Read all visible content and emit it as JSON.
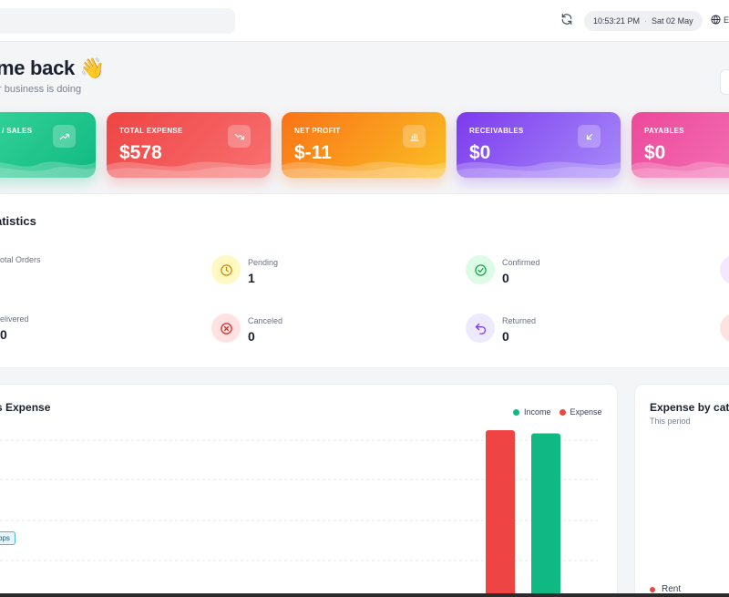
{
  "topbar": {
    "time": "10:53:21 PM",
    "separator": "·",
    "date": "Sat 02 May",
    "language": "E"
  },
  "welcome": {
    "title": "me back 👋",
    "subtitle": "r business is doing"
  },
  "cards": [
    {
      "label": "E / SALES",
      "value": "",
      "icon": "trending-up-icon",
      "color": "#10b981"
    },
    {
      "label": "TOTAL EXPENSE",
      "value": "$578",
      "icon": "trending-down-icon",
      "color": "#ef4444"
    },
    {
      "label": "NET PROFIT",
      "value": "$-11",
      "icon": "bar-chart-icon",
      "color": "#f97316"
    },
    {
      "label": "RECEIVABLES",
      "value": "$0",
      "icon": "arrow-down-left-icon",
      "color": "#7c3aed"
    },
    {
      "label": "PAYABLES",
      "value": "$0",
      "icon": "arrow-up-right-icon",
      "color": "#ec4899"
    }
  ],
  "statistics": {
    "title": "atistics",
    "items": [
      {
        "label": "otal Orders",
        "value": ""
      },
      {
        "label": "Pending",
        "value": "1",
        "icon": "clock-icon"
      },
      {
        "label": "Confirmed",
        "value": "0",
        "icon": "check-circle-icon"
      },
      {
        "label": "elivered",
        "value": "0"
      },
      {
        "label": "Canceled",
        "value": "0",
        "icon": "x-circle-icon"
      },
      {
        "label": "Returned",
        "value": "0",
        "icon": "undo-icon"
      }
    ]
  },
  "income_expense": {
    "title": "s Expense",
    "legend": [
      {
        "name": "Income",
        "color": "#10b981"
      },
      {
        "name": "Expense",
        "color": "#ef4444"
      }
    ]
  },
  "chart_data": {
    "type": "bar",
    "title": "s Expense",
    "series": [
      {
        "name": "Expense",
        "values": [
          578
        ],
        "color": "#ef4444"
      },
      {
        "name": "Income",
        "values": [
          567
        ],
        "color": "#10b981"
      }
    ],
    "grid": true,
    "legend": "top-right"
  },
  "expense_by_category": {
    "title": "Expense by cat",
    "subtitle": "This period",
    "items": [
      {
        "name": "Rent",
        "color": "#ef4444"
      }
    ]
  },
  "tooltip": {
    "text": "bps"
  }
}
